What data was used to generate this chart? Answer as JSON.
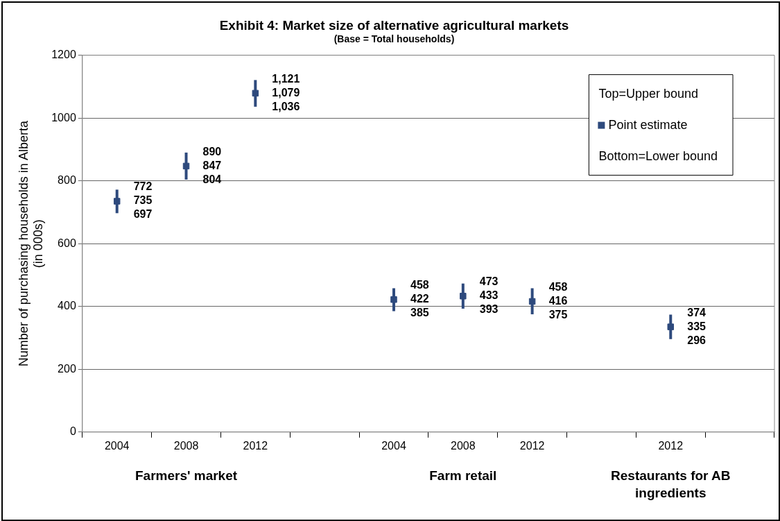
{
  "chart_data": {
    "type": "scatter",
    "title": "Exhibit 4: Market size of alternative agricultural markets",
    "subtitle": "(Base = Total households)",
    "ylabel": "Number of purchasing households in Alberta\n(in 000s)",
    "categories": [
      "2004",
      "2008",
      "2012",
      null,
      "2004",
      "2008",
      "2012",
      null,
      "2012",
      null
    ],
    "series": [
      {
        "name": "Point estimate",
        "color": "#2e4a7d",
        "values": [
          735,
          847,
          1079,
          null,
          422,
          433,
          416,
          null,
          335,
          null
        ],
        "errors": [
          [
            697,
            772
          ],
          [
            804,
            890
          ],
          [
            1036,
            1121
          ],
          null,
          [
            385,
            458
          ],
          [
            393,
            473
          ],
          [
            375,
            458
          ],
          null,
          [
            296,
            374
          ],
          null
        ]
      }
    ],
    "value_labels": [
      "772\n735\n697",
      "890\n847\n804",
      "1,121\n1,079\n1,036",
      null,
      "458\n422\n385",
      "473\n433\n393",
      "458\n416\n375",
      null,
      "374\n335\n296",
      null
    ],
    "ylim": [
      0,
      1200
    ],
    "yticks": [
      0,
      200,
      400,
      600,
      800,
      1000,
      1200
    ],
    "grid": "y",
    "legend": "top right",
    "marker": "square",
    "annotations": [
      "Top=Upper bound",
      "Bottom=Lower bound",
      "Farmers' market",
      "Farm retail",
      "Restaurants for AB ingredients"
    ]
  }
}
